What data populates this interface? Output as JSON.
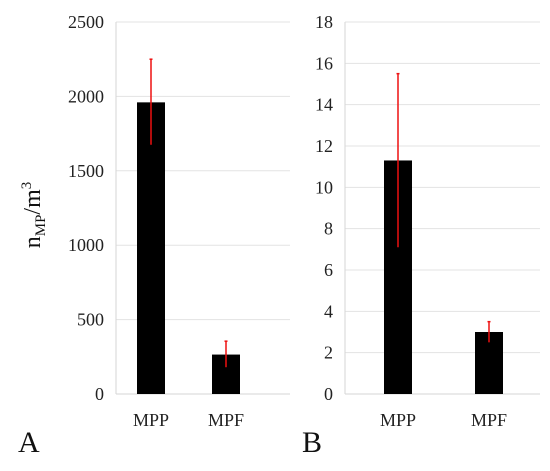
{
  "chart_data": [
    {
      "type": "bar",
      "panel_label": "A",
      "ylabel_base": "n",
      "ylabel_sub": "MP",
      "ylabel_rest": "/m",
      "ylabel_sup": "3",
      "categories": [
        "MPP",
        "MPF"
      ],
      "values": [
        1960,
        265
      ],
      "error_low": [
        1675,
        180
      ],
      "error_high": [
        2250,
        355
      ],
      "ylim": [
        0,
        2500
      ],
      "yticks": [
        0,
        500,
        1000,
        1500,
        2000,
        2500
      ],
      "grid": true,
      "colors": {
        "bar": "#000000",
        "error": "#ee1111",
        "grid": "#e3e3e3"
      }
    },
    {
      "type": "bar",
      "panel_label": "B",
      "categories": [
        "MPP",
        "MPF"
      ],
      "values": [
        11.3,
        3.0
      ],
      "error_low": [
        7.1,
        2.5
      ],
      "error_high": [
        15.5,
        3.5
      ],
      "ylim": [
        0,
        18
      ],
      "yticks": [
        0,
        2,
        4,
        6,
        8,
        10,
        12,
        14,
        16,
        18
      ],
      "grid": true,
      "colors": {
        "bar": "#000000",
        "error": "#ee1111",
        "grid": "#e3e3e3"
      }
    }
  ]
}
